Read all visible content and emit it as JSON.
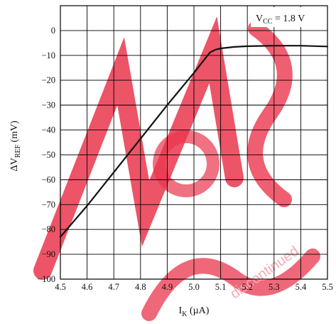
{
  "chart_data": {
    "type": "line",
    "title": "",
    "annotation": {
      "base": "V",
      "sub": "CC",
      "rest": " = 1.8 V"
    },
    "xlabel": {
      "base": "I",
      "sub": "K",
      "rest": "  (µA)"
    },
    "ylabel": {
      "base": "ΔV",
      "sub": "REF",
      "rest": "  (mV)"
    },
    "xlim": [
      4.5,
      5.5
    ],
    "ylim": [
      -100,
      10
    ],
    "xticks": [
      "4.5",
      "4.6",
      "4.7",
      "4.8",
      "4.9",
      "5.0",
      "5.1",
      "5.2",
      "5.3",
      "5.4",
      "5.5"
    ],
    "xtick_values": [
      4.5,
      4.6,
      4.7,
      4.8,
      4.9,
      5.0,
      5.1,
      5.2,
      5.3,
      5.4,
      5.5
    ],
    "yticks": [
      "0",
      "-10",
      "-20",
      "-30",
      "-40",
      "-50",
      "-60",
      "-70",
      "-80",
      "-90",
      "-100"
    ],
    "ytick_values": [
      0,
      -10,
      -20,
      -30,
      -40,
      -50,
      -60,
      -70,
      -80,
      -90,
      -100
    ],
    "grid": true,
    "series": [
      {
        "x": [
          4.5,
          4.6,
          4.7,
          4.8,
          4.9,
          5.0,
          5.06,
          5.08,
          5.1,
          5.15,
          5.2,
          5.3,
          5.4,
          5.5
        ],
        "y": [
          -83,
          -70.5,
          -57,
          -43.5,
          -30,
          -17,
          -8.8,
          -7.7,
          -7.2,
          -6.6,
          -6.3,
          -6.1,
          -6.1,
          -6.4
        ]
      }
    ]
  }
}
